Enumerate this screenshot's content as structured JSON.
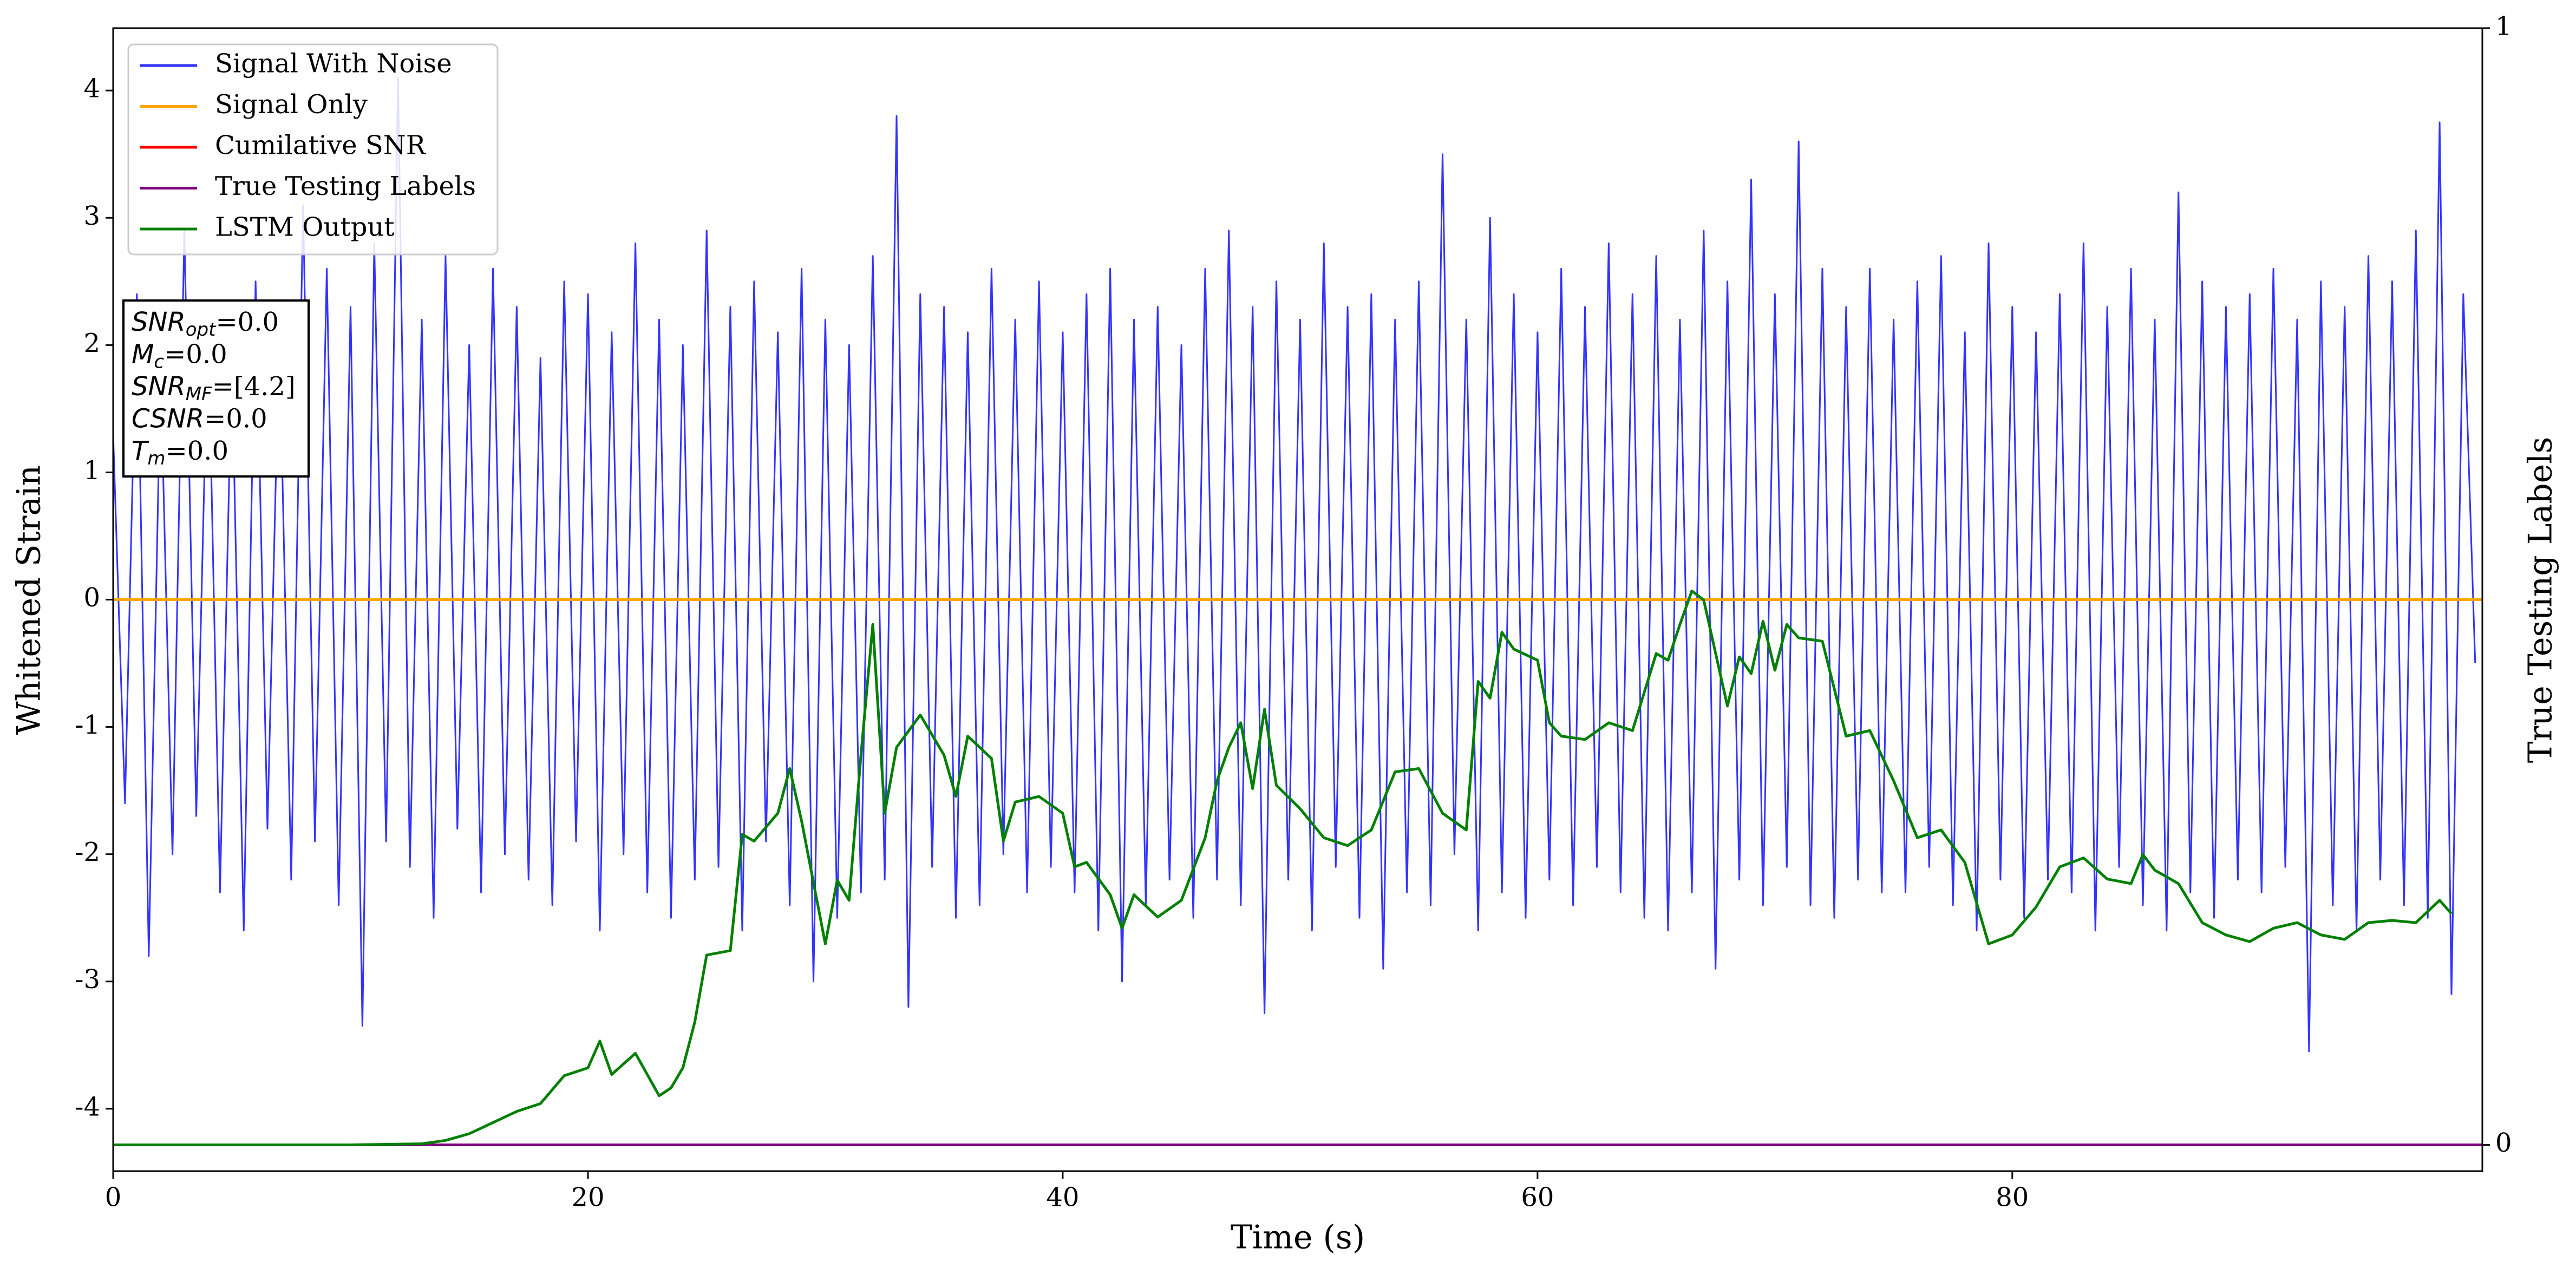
{
  "chart_data": {
    "type": "line",
    "xlabel": "Time (s)",
    "ylabel": "Whitened Strain",
    "y2label": "True Testing Labels",
    "xlim": [
      0,
      99.8
    ],
    "xticks": [
      0,
      20,
      40,
      60,
      80
    ],
    "ylim": [
      -4.49,
      4.49
    ],
    "yticks": [
      -4,
      -3,
      -2,
      -1,
      0,
      1,
      2,
      3,
      4
    ],
    "y2lim": [
      -0.0235,
      1
    ],
    "y2ticks": [
      0,
      1
    ],
    "legend": "upper left",
    "annotations": [
      {
        "symbol": "SNR",
        "subscript": "opt",
        "text": "=0.0"
      },
      {
        "symbol": "M",
        "subscript": "c",
        "text": "=0.0"
      },
      {
        "symbol": "SNR",
        "subscript": "MF",
        "text": "=[4.2]"
      },
      {
        "symbol": "CSNR",
        "subscript": null,
        "text": "=0.0"
      },
      {
        "symbol": "T",
        "subscript": "m",
        "text": "=0.0"
      }
    ],
    "series": [
      {
        "name": "Signal With Noise",
        "color": "#3333ff",
        "x": [
          0,
          0.5,
          1,
          1.5,
          2,
          2.5,
          3,
          3.5,
          4,
          4.5,
          5,
          5.5,
          6,
          6.5,
          7,
          7.5,
          8,
          8.5,
          9,
          9.5,
          10,
          10.5,
          11,
          11.5,
          12,
          12.5,
          13,
          13.5,
          14,
          14.5,
          15,
          15.5,
          16,
          16.5,
          17,
          17.5,
          18,
          18.5,
          19,
          19.5,
          20,
          20.5,
          21,
          21.5,
          22,
          22.5,
          23,
          23.5,
          24,
          24.5,
          25,
          25.5,
          26,
          26.5,
          27,
          27.5,
          28,
          28.5,
          29,
          29.5,
          30,
          30.5,
          31,
          31.5,
          32,
          32.5,
          33,
          33.5,
          34,
          34.5,
          35,
          35.5,
          36,
          36.5,
          37,
          37.5,
          38,
          38.5,
          39,
          39.5,
          40,
          40.5,
          41,
          41.5,
          42,
          42.5,
          43,
          43.5,
          44,
          44.5,
          45,
          45.5,
          46,
          46.5,
          47,
          47.5,
          48,
          48.5,
          49,
          49.5,
          50,
          50.5,
          51,
          51.5,
          52,
          52.5,
          53,
          53.5,
          54,
          54.5,
          55,
          55.5,
          56,
          56.5,
          57,
          57.5,
          58,
          58.5,
          59,
          59.5,
          60,
          60.5,
          61,
          61.5,
          62,
          62.5,
          63,
          63.5,
          64,
          64.5,
          65,
          65.5,
          66,
          66.5,
          67,
          67.5,
          68,
          68.5,
          69,
          69.5,
          70,
          70.5,
          71,
          71.5,
          72,
          72.5,
          73,
          73.5,
          74,
          74.5,
          75,
          75.5,
          76,
          76.5,
          77,
          77.5,
          78,
          78.5,
          79,
          79.5,
          80,
          80.5,
          81,
          81.5,
          82,
          82.5,
          83,
          83.5,
          84,
          84.5,
          85,
          85.5,
          86,
          86.5,
          87,
          87.5,
          88,
          88.5,
          89,
          89.5,
          90,
          90.5,
          91,
          91.5,
          92,
          92.5,
          93,
          93.5,
          94,
          94.5,
          95,
          95.5,
          96,
          96.5,
          97,
          97.5,
          98,
          98.5,
          99,
          99.5
        ],
        "values": [
          1.3,
          -1.6,
          2.4,
          -2.8,
          1.8,
          -2.0,
          2.9,
          -1.7,
          2.2,
          -2.3,
          1.9,
          -2.6,
          2.5,
          -1.8,
          2.1,
          -2.2,
          3.1,
          -1.9,
          2.6,
          -2.4,
          2.3,
          -3.35,
          2.8,
          -1.9,
          4.1,
          -2.1,
          2.2,
          -2.5,
          2.7,
          -1.8,
          2.0,
          -2.3,
          2.6,
          -2.0,
          2.3,
          -2.2,
          1.9,
          -2.4,
          2.5,
          -1.9,
          2.4,
          -2.6,
          2.1,
          -2.0,
          2.8,
          -2.3,
          2.2,
          -2.5,
          2.0,
          -2.2,
          2.9,
          -2.1,
          2.3,
          -2.6,
          2.5,
          -1.9,
          2.1,
          -2.4,
          2.6,
          -3.0,
          2.2,
          -2.5,
          2.0,
          -2.3,
          2.7,
          -2.2,
          3.8,
          -3.2,
          2.4,
          -2.1,
          2.3,
          -2.5,
          2.1,
          -2.4,
          2.6,
          -2.0,
          2.2,
          -2.3,
          2.5,
          -2.1,
          2.1,
          -2.3,
          2.4,
          -2.6,
          2.6,
          -3.0,
          2.2,
          -2.4,
          2.3,
          -2.2,
          2.0,
          -2.5,
          2.6,
          -2.2,
          2.9,
          -2.4,
          2.3,
          -3.25,
          2.5,
          -2.2,
          2.2,
          -2.6,
          2.8,
          -2.1,
          2.3,
          -2.5,
          2.4,
          -2.9,
          2.2,
          -2.3,
          2.5,
          -2.4,
          3.5,
          -2.0,
          2.2,
          -2.6,
          3.0,
          -2.3,
          2.4,
          -2.5,
          2.1,
          -2.2,
          2.6,
          -2.4,
          2.3,
          -2.1,
          2.8,
          -2.3,
          2.4,
          -2.5,
          2.7,
          -2.6,
          2.2,
          -2.3,
          2.9,
          -2.9,
          2.5,
          -2.2,
          3.3,
          -2.4,
          2.4,
          -2.1,
          3.6,
          -2.4,
          2.6,
          -2.5,
          2.3,
          -2.2,
          2.6,
          -2.3,
          2.2,
          -2.3,
          2.5,
          -2.1,
          2.7,
          -2.4,
          2.1,
          -2.6,
          2.8,
          -2.2,
          2.3,
          -2.5,
          2.1,
          -2.2,
          2.4,
          -2.3,
          2.8,
          -2.6,
          2.3,
          -2.1,
          2.6,
          -2.4,
          2.2,
          -2.6,
          3.2,
          -2.3,
          2.5,
          -2.5,
          2.3,
          -2.2,
          2.4,
          -2.3,
          2.6,
          -2.1,
          2.2,
          -3.55,
          2.5,
          -2.4,
          2.3,
          -2.6,
          2.7,
          -2.2,
          2.5,
          -2.4,
          2.9,
          -2.5,
          3.75,
          -3.1,
          2.4,
          -0.5
        ]
      },
      {
        "name": "Signal Only",
        "color": "#ffa500",
        "x": [
          0,
          99.8
        ],
        "values": [
          0,
          0
        ]
      },
      {
        "name": "Cumilative SNR",
        "color": "#ff0000",
        "axis": "y2",
        "x": [
          0,
          99.8
        ],
        "values": [
          0,
          0
        ]
      },
      {
        "name": "True Testing Labels",
        "color": "#800080",
        "axis": "y2",
        "x": [
          0,
          99.8
        ],
        "values": [
          0,
          0
        ]
      },
      {
        "name": "LSTM Output",
        "color": "#008000",
        "axis": "y2",
        "x": [
          0,
          10,
          13,
          14,
          15,
          16,
          17,
          18,
          19,
          20,
          20.5,
          21,
          22,
          23,
          23.5,
          24,
          24.5,
          25,
          26,
          26.5,
          27,
          28,
          28.5,
          29,
          30,
          30.5,
          31,
          31.5,
          32,
          32.5,
          33,
          34,
          35,
          35.5,
          36,
          37,
          37.5,
          38,
          39,
          40,
          40.5,
          41,
          42,
          42.5,
          43,
          44,
          45,
          46,
          46.5,
          47,
          47.5,
          48,
          48.5,
          49,
          50,
          51,
          52,
          53,
          54,
          55,
          56,
          57,
          57.5,
          58,
          58.5,
          59,
          60,
          60.5,
          61,
          62,
          63,
          64,
          65,
          65.5,
          66,
          66.5,
          67,
          68,
          68.5,
          69,
          69.5,
          70,
          70.5,
          71,
          72,
          73,
          74,
          75,
          76,
          77,
          78,
          79,
          80,
          81,
          82,
          83,
          84,
          85,
          85.5,
          86,
          87,
          88,
          89,
          90,
          91,
          92,
          93,
          94,
          95,
          96,
          97,
          98,
          98.5
        ],
        "values": [
          0,
          0,
          0.001,
          0.004,
          0.01,
          0.02,
          0.03,
          0.037,
          0.062,
          0.069,
          0.093,
          0.063,
          0.082,
          0.044,
          0.051,
          0.069,
          0.11,
          0.17,
          0.174,
          0.278,
          0.272,
          0.297,
          0.337,
          0.29,
          0.18,
          0.237,
          0.219,
          0.349,
          0.466,
          0.297,
          0.356,
          0.385,
          0.349,
          0.312,
          0.366,
          0.346,
          0.272,
          0.307,
          0.312,
          0.297,
          0.249,
          0.253,
          0.224,
          0.194,
          0.224,
          0.204,
          0.219,
          0.275,
          0.326,
          0.356,
          0.378,
          0.319,
          0.39,
          0.322,
          0.301,
          0.275,
          0.268,
          0.282,
          0.334,
          0.337,
          0.297,
          0.282,
          0.415,
          0.4,
          0.459,
          0.444,
          0.434,
          0.378,
          0.366,
          0.363,
          0.378,
          0.371,
          0.44,
          0.434,
          0.466,
          0.496,
          0.488,
          0.393,
          0.437,
          0.422,
          0.469,
          0.425,
          0.466,
          0.454,
          0.451,
          0.366,
          0.371,
          0.326,
          0.275,
          0.282,
          0.253,
          0.18,
          0.188,
          0.213,
          0.249,
          0.257,
          0.238,
          0.234,
          0.26,
          0.246,
          0.234,
          0.199,
          0.188,
          0.182,
          0.194,
          0.199,
          0.188,
          0.184,
          0.199,
          0.201,
          0.199,
          0.219,
          0.207
        ]
      }
    ]
  }
}
